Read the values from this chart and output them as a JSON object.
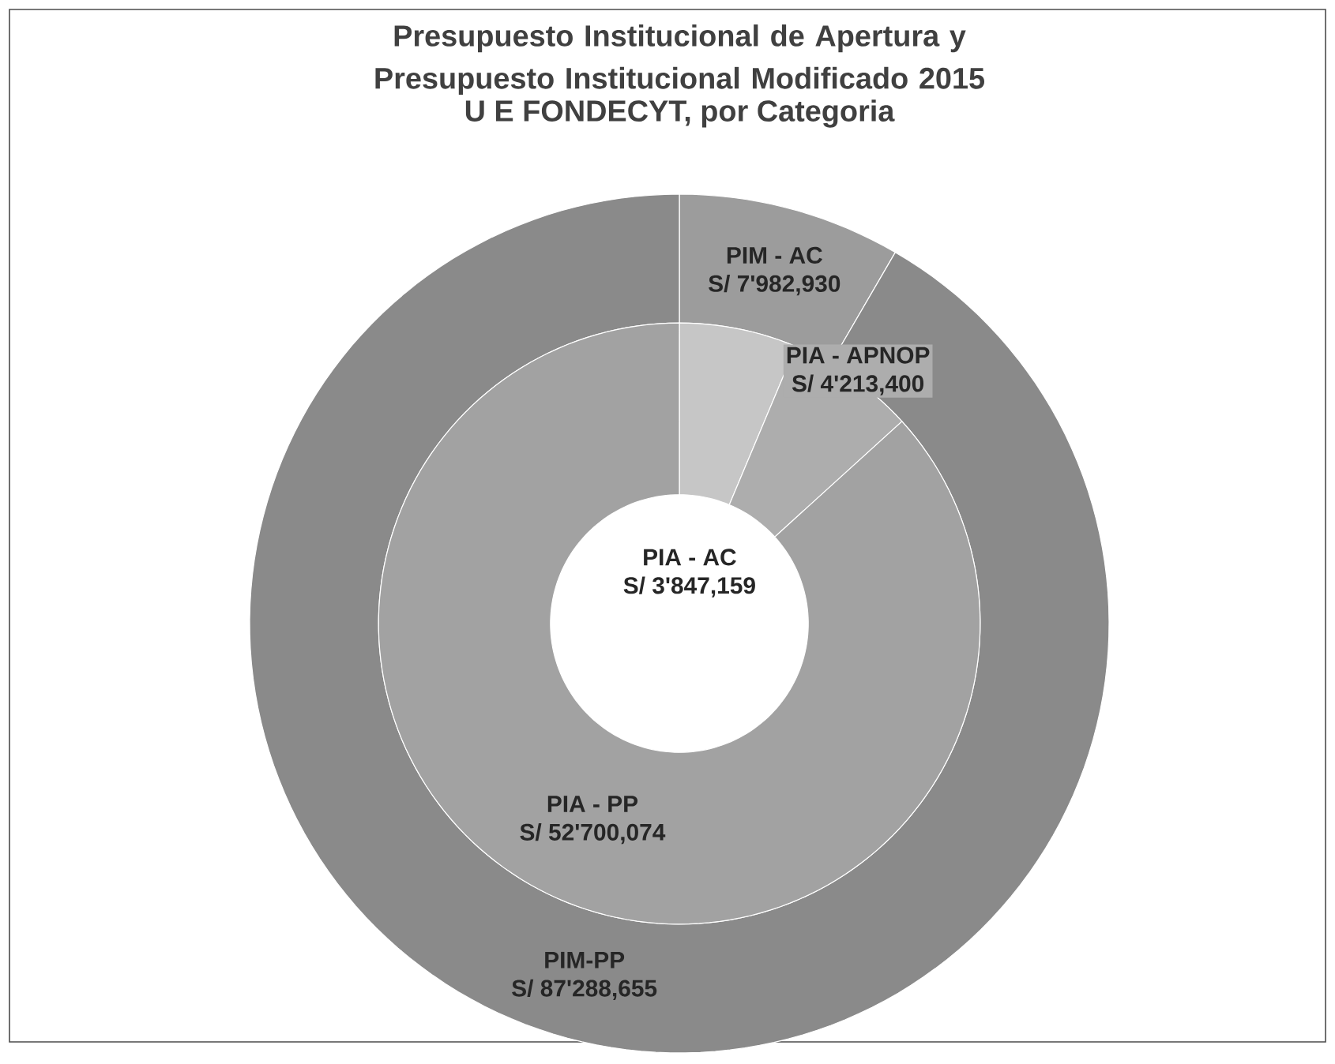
{
  "chart_data": [
    {
      "type": "donut",
      "title": "Presupuesto Institucional de Apertura y Presupuesto Institucional Modificado 2015",
      "subtitle": "U E FONDECYT, por Categoria",
      "categories": [
        "PIA - AC",
        "PIA - APNOP",
        "PIA - PP"
      ],
      "values": [
        6.33,
        6.93,
        86.74
      ],
      "value_labels": [
        "S/ 3'847,159",
        "S/ 4'213,400",
        "S/ 52'700,074"
      ],
      "colors": [
        "#c6c6c6",
        "#adadad",
        "#a2a2a2"
      ]
    },
    {
      "type": "donut",
      "categories": [
        "PIM - AC",
        "PIM-PP"
      ],
      "values": [
        8.38,
        91.62
      ],
      "value_labels": [
        "S/ 7'982,930",
        "S/ 87'288,655"
      ],
      "colors": [
        "#9c9c9c",
        "#8a8a8a"
      ]
    }
  ]
}
